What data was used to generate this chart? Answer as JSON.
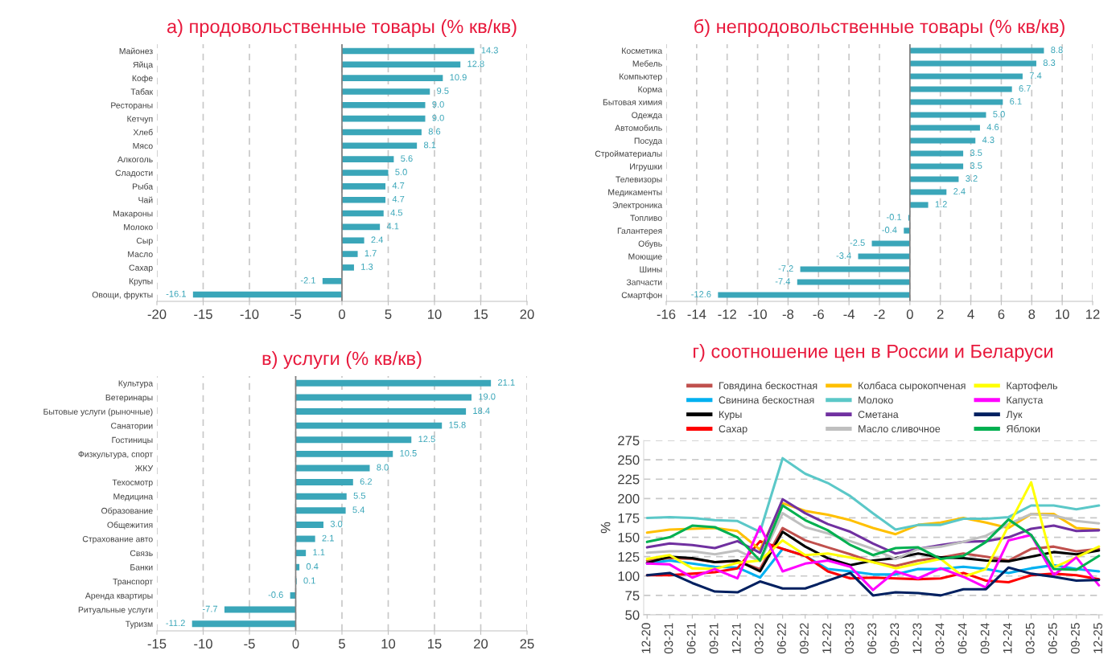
{
  "chart_data": [
    {
      "type": "bar",
      "orientation": "horizontal",
      "title": "а) продовольственные товары (% кв/кв)",
      "grid": "x",
      "categories": [
        "Майонез",
        "Яйца",
        "Кофе",
        "Табак",
        "Рестораны",
        "Кетчуп",
        "Хлеб",
        "Мясо",
        "Алкоголь",
        "Сладости",
        "Рыба",
        "Чай",
        "Макароны",
        "Молоко",
        "Сыр",
        "Масло",
        "Сахар",
        "Крупы",
        "Овощи, фрукты"
      ],
      "series": [
        {
          "color": "#3aa6b9",
          "values": [
            14.3,
            12.8,
            10.9,
            9.5,
            9.0,
            9.0,
            8.6,
            8.1,
            5.6,
            5.0,
            4.7,
            4.7,
            4.5,
            4.1,
            2.4,
            1.7,
            1.3,
            -2.1,
            -16.1
          ],
          "value_labels": [
            "14.3",
            "12.8",
            "10.9",
            "9.5",
            "9.0",
            "9.0",
            "8.6",
            "8.1",
            "5.6",
            "5.0",
            "4.7",
            "4.7",
            "4.5",
            "4.1",
            "2.4",
            "1.7",
            "1.3",
            "-2.1",
            "-16.1"
          ]
        }
      ],
      "xlim": [
        -20,
        20
      ],
      "xticks": [
        -20,
        -15,
        -10,
        -5,
        0,
        5,
        10,
        15,
        20
      ]
    },
    {
      "type": "bar",
      "orientation": "horizontal",
      "title": "б) непродовольственные товары (% кв/кв)",
      "grid": "x",
      "categories": [
        "Косметика",
        "Мебель",
        "Компьютер",
        "Корма",
        "Бытовая химия",
        "Одежда",
        "Автомобиль",
        "Посуда",
        "Стройматериалы",
        "Игрушки",
        "Телевизоры",
        "Медикаменты",
        "Электроника",
        "Топливо",
        "Галантерея",
        "Обувь",
        "Моющие",
        "Шины",
        "Запчасти",
        "Смартфон"
      ],
      "series": [
        {
          "color": "#3aa6b9",
          "values": [
            8.8,
            8.3,
            7.4,
            6.7,
            6.1,
            5.0,
            4.6,
            4.3,
            3.5,
            3.5,
            3.2,
            2.4,
            1.2,
            -0.1,
            -0.4,
            -2.5,
            -3.4,
            -7.2,
            -7.4,
            -12.6
          ],
          "value_labels": [
            "8.8",
            "8.3",
            "7.4",
            "6.7",
            "6.1",
            "5.0",
            "4.6",
            "4.3",
            "3.5",
            "3.5",
            "3.2",
            "2.4",
            "1.2",
            "-0.1",
            "-0.4",
            "-2.5",
            "-3.4",
            "-7.2",
            "-7.4",
            "-12.6"
          ]
        }
      ],
      "xlim": [
        -16,
        12
      ],
      "xticks": [
        -16,
        -14,
        -12,
        -10,
        -8,
        -6,
        -4,
        -2,
        0,
        2,
        4,
        6,
        8,
        10,
        12
      ]
    },
    {
      "type": "bar",
      "orientation": "horizontal",
      "title": "в) услуги (% кв/кв)",
      "grid": "x",
      "categories": [
        "Культура",
        "Ветеринары",
        "Бытовые услуги (рыночные)",
        "Санатории",
        "Гостиницы",
        "Физкультура, спорт",
        "ЖКУ",
        "Техосмотр",
        "Медицина",
        "Образование",
        "Общежития",
        "Страхование авто",
        "Связь",
        "Банки",
        "Транспорт",
        "Аренда квартиры",
        "Ритуальные услуги",
        "Туризм"
      ],
      "series": [
        {
          "color": "#3aa6b9",
          "values": [
            21.1,
            19.0,
            18.4,
            15.8,
            12.5,
            10.5,
            8.0,
            6.2,
            5.5,
            5.4,
            3.0,
            2.1,
            1.1,
            0.4,
            0.1,
            -0.6,
            -7.7,
            -11.2
          ],
          "value_labels": [
            "21.1",
            "19.0",
            "18.4",
            "15.8",
            "12.5",
            "10.5",
            "8.0",
            "6.2",
            "5.5",
            "5.4",
            "3.0",
            "2.1",
            "1.1",
            "0.4",
            "0.1",
            "-0.6",
            "-7.7",
            "-11.2"
          ]
        }
      ],
      "xlim": [
        -15,
        25
      ],
      "xticks": [
        -15,
        -10,
        -5,
        0,
        5,
        10,
        15,
        20,
        25
      ]
    },
    {
      "type": "line",
      "title": "г) соотношение цен в России и Беларуси",
      "ylabel": "%",
      "grid": "y",
      "legend": "top",
      "marker": "none",
      "line_style": "solid",
      "categories": [
        "12-20",
        "03-21",
        "06-21",
        "09-21",
        "12-21",
        "03-22",
        "06-22",
        "09-22",
        "12-22",
        "03-23",
        "06-23",
        "09-23",
        "12-23",
        "03-24",
        "06-24",
        "09-24",
        "12-24",
        "03-25",
        "06-25",
        "09-25",
        "12-25"
      ],
      "ylim": [
        50,
        275
      ],
      "yticks": [
        50,
        75,
        100,
        125,
        150,
        175,
        200,
        225,
        250,
        275
      ],
      "series": [
        {
          "name": "Говядина бескостная",
          "color": "#c0504d",
          "values": [
            120,
            123,
            122,
            118,
            119,
            109,
            162,
            146,
            137,
            128,
            118,
            113,
            120,
            124,
            129,
            125,
            120,
            135,
            138,
            132,
            135
          ]
        },
        {
          "name": "Свинина бескостная",
          "color": "#00b0f0",
          "values": [
            116,
            120,
            116,
            112,
            111,
            98,
            135,
            126,
            109,
            106,
            102,
            102,
            109,
            109,
            112,
            109,
            104,
            110,
            114,
            109,
            106
          ]
        },
        {
          "name": "Куры",
          "color": "#000000",
          "values": [
            117,
            125,
            123,
            118,
            120,
            106,
            157,
            138,
            123,
            114,
            120,
            123,
            129,
            124,
            123,
            120,
            119,
            125,
            131,
            128,
            133
          ]
        },
        {
          "name": "Сахар",
          "color": "#ff0000",
          "values": [
            101,
            101,
            103,
            105,
            110,
            145,
            135,
            126,
            106,
            97,
            98,
            97,
            96,
            97,
            104,
            94,
            92,
            101,
            103,
            101,
            96
          ]
        },
        {
          "name": "Колбаса сырокопченая",
          "color": "#ffc000",
          "values": [
            156,
            160,
            161,
            162,
            158,
            134,
            194,
            184,
            179,
            172,
            162,
            154,
            166,
            169,
            175,
            169,
            162,
            180,
            180,
            162,
            160
          ]
        },
        {
          "name": "Молоко",
          "color": "#5bc8c8",
          "values": [
            175,
            176,
            175,
            172,
            171,
            157,
            252,
            232,
            220,
            203,
            181,
            160,
            166,
            166,
            174,
            174,
            176,
            191,
            191,
            186,
            191
          ]
        },
        {
          "name": "Сметана",
          "color": "#7030a0",
          "values": [
            137,
            142,
            140,
            136,
            145,
            130,
            199,
            181,
            167,
            157,
            142,
            129,
            135,
            140,
            144,
            145,
            150,
            161,
            165,
            158,
            159
          ]
        },
        {
          "name": "Масло сливочное",
          "color": "#bfbfbf",
          "values": [
            130,
            132,
            132,
            128,
            133,
            119,
            181,
            163,
            155,
            145,
            135,
            122,
            135,
            138,
            144,
            152,
            167,
            180,
            178,
            171,
            168
          ]
        },
        {
          "name": "Картофель",
          "color": "#ffff00",
          "values": [
            122,
            127,
            110,
            109,
            117,
            120,
            146,
            127,
            129,
            124,
            118,
            110,
            116,
            122,
            99,
            109,
            165,
            221,
            111,
            124,
            138
          ]
        },
        {
          "name": "Капуста",
          "color": "#ff00ff",
          "values": [
            116,
            115,
            98,
            109,
            97,
            164,
            106,
            116,
            120,
            112,
            82,
            106,
            97,
            110,
            99,
            85,
            146,
            153,
            101,
            124,
            88
          ]
        },
        {
          "name": "Лук",
          "color": "#002060",
          "values": [
            101,
            104,
            91,
            80,
            79,
            93,
            84,
            84,
            94,
            104,
            75,
            79,
            78,
            75,
            83,
            83,
            111,
            103,
            99,
            94,
            95
          ]
        },
        {
          "name": "Яблоки",
          "color": "#00b050",
          "values": [
            144,
            150,
            165,
            163,
            150,
            120,
            191,
            172,
            159,
            140,
            127,
            136,
            137,
            122,
            126,
            144,
            173,
            153,
            109,
            108,
            126
          ]
        }
      ]
    }
  ]
}
